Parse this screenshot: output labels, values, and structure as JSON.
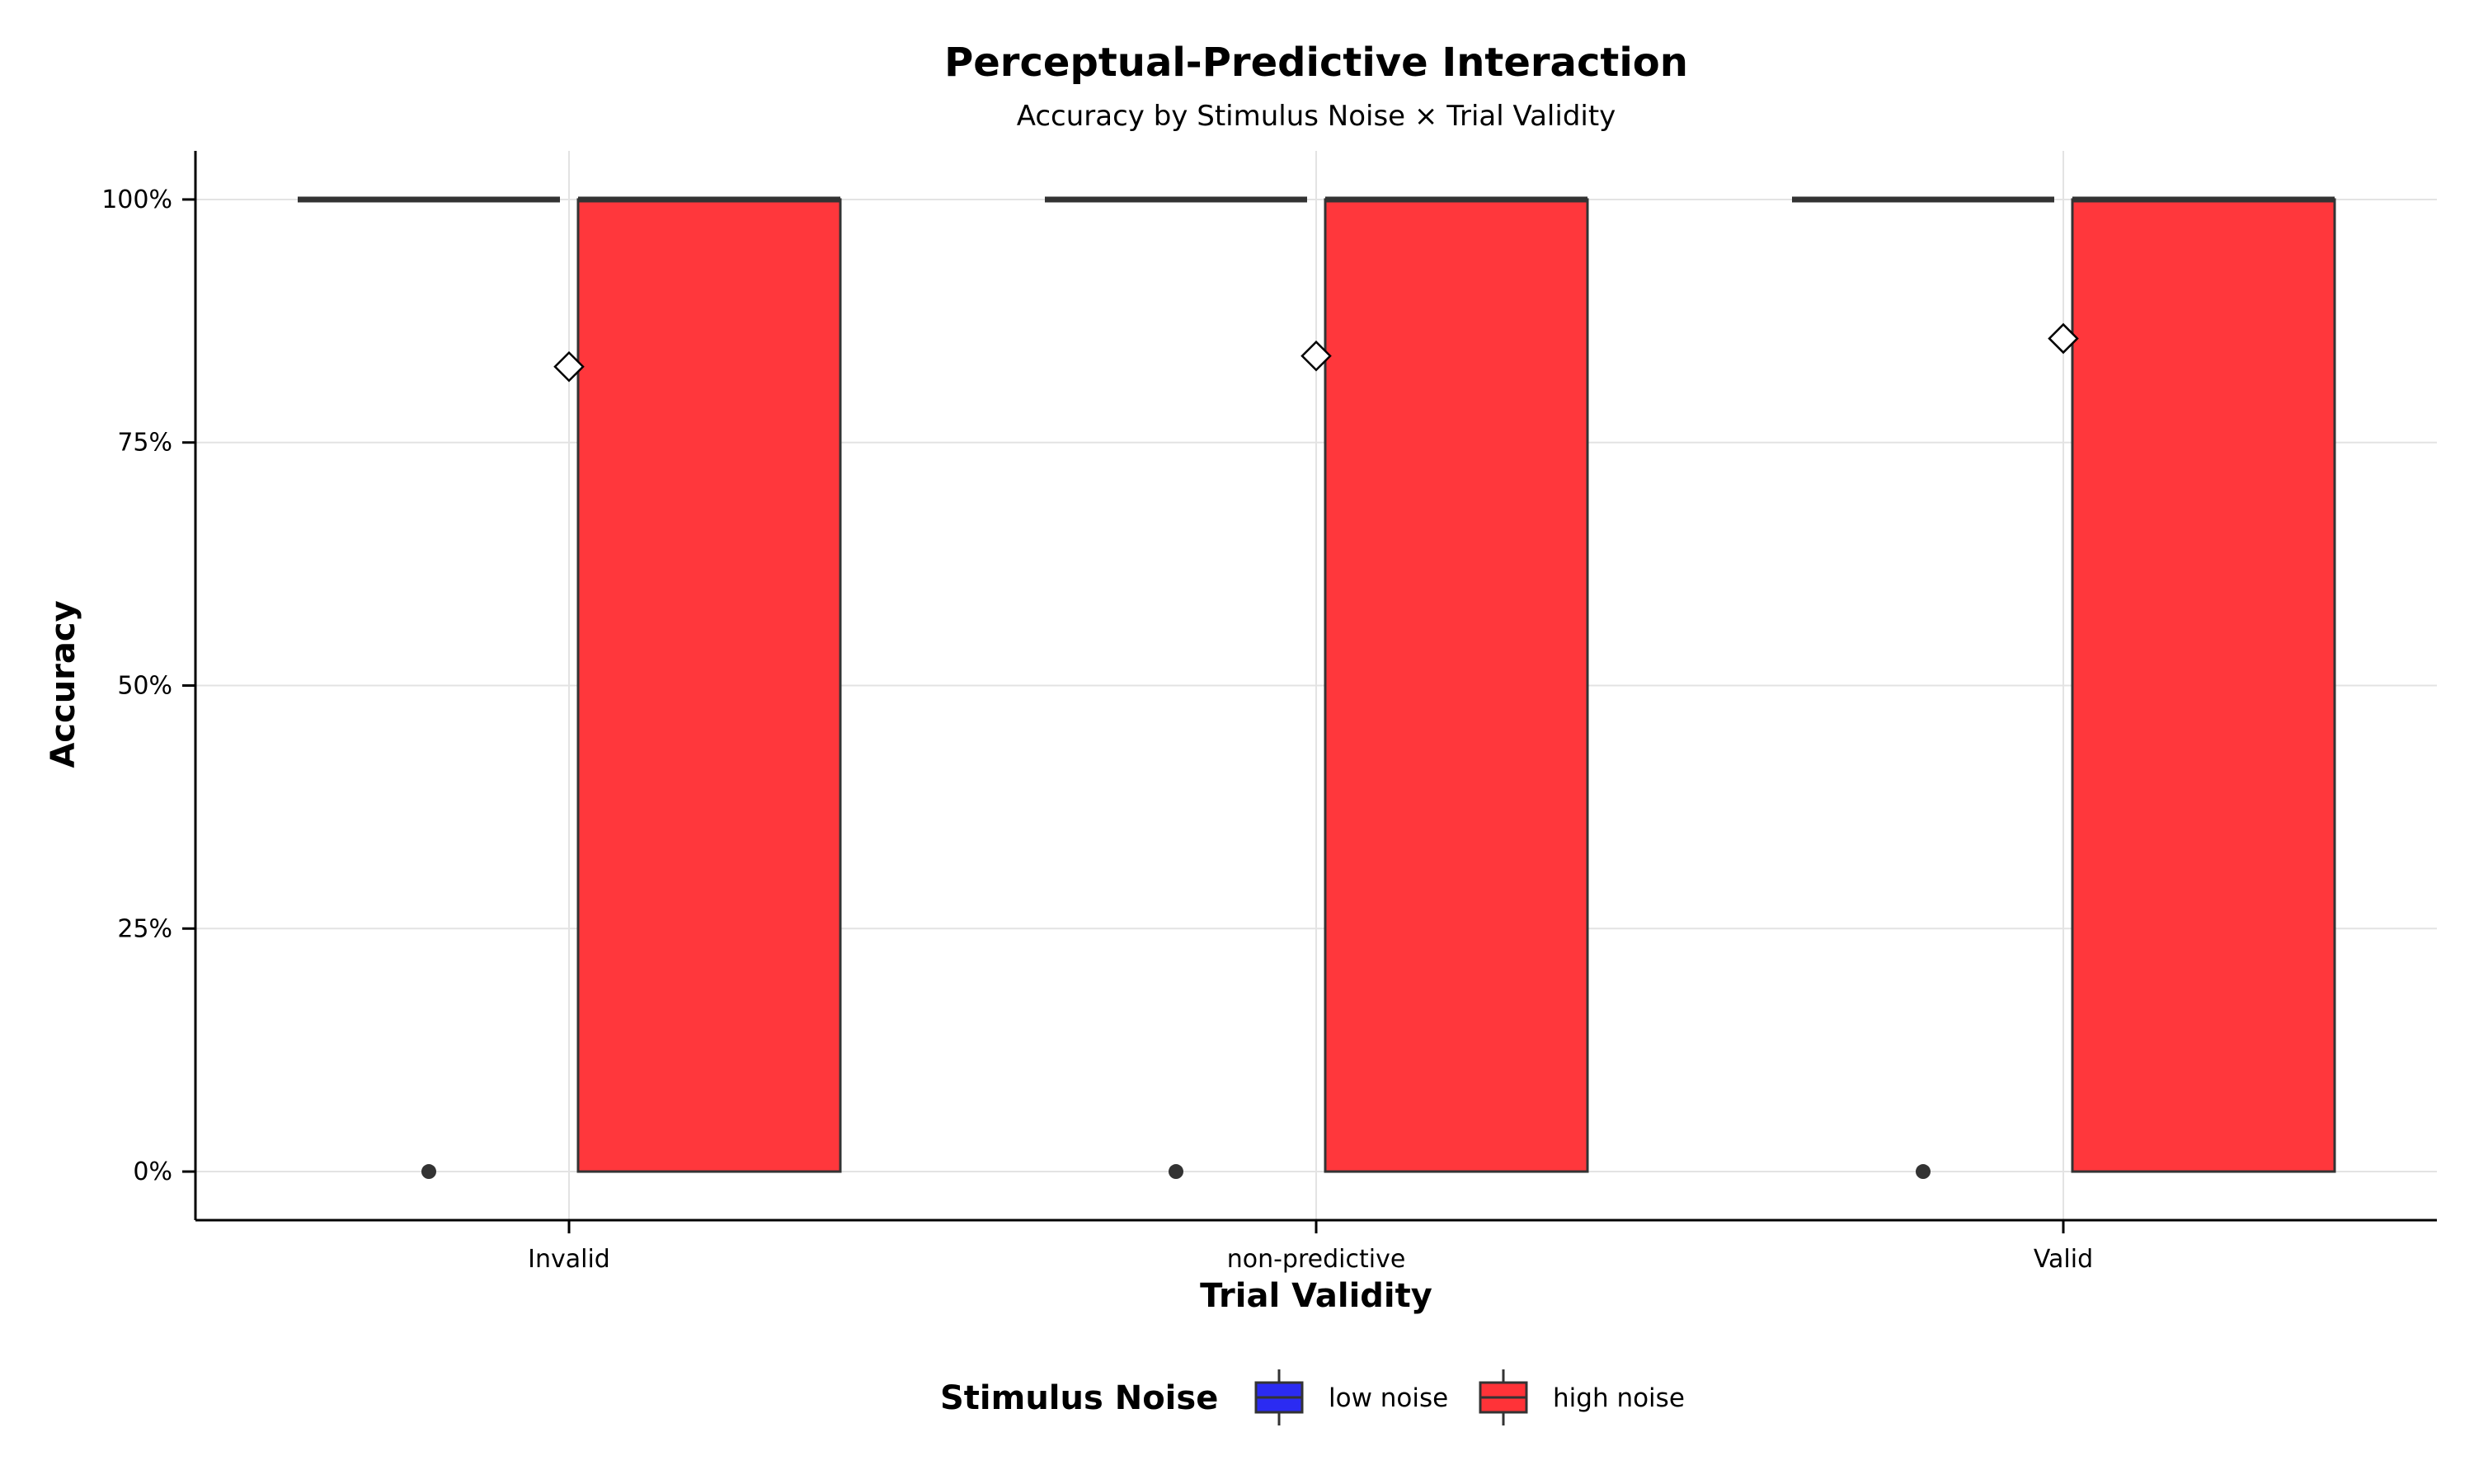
{
  "chart_data": {
    "type": "box",
    "title": "Perceptual-Predictive Interaction",
    "subtitle": "Accuracy by Stimulus Noise × Trial Validity",
    "xlabel": "Trial Validity",
    "ylabel": "Accuracy",
    "categories": [
      "Invalid",
      "non-predictive",
      "Valid"
    ],
    "ylim": [
      -0.05,
      1.05
    ],
    "yticks": [
      0,
      0.25,
      0.5,
      0.75,
      1.0
    ],
    "ytick_labels": [
      "0%",
      "25%",
      "50%",
      "75%",
      "100%"
    ],
    "grid": true,
    "legend": {
      "title": "Stimulus Noise",
      "placement": "bottom",
      "entries": [
        {
          "name": "low noise",
          "color": "#2b2bf2"
        },
        {
          "name": "high noise",
          "color": "#ff3338"
        }
      ]
    },
    "series": [
      {
        "name": "low noise",
        "color": "#2b2bf2",
        "boxes": [
          {
            "q1": 1,
            "median": 1,
            "q3": 1,
            "whisker_low": 1,
            "whisker_high": 1,
            "outliers": [
              0
            ]
          },
          {
            "q1": 1,
            "median": 1,
            "q3": 1,
            "whisker_low": 1,
            "whisker_high": 1,
            "outliers": [
              0
            ]
          },
          {
            "q1": 1,
            "median": 1,
            "q3": 1,
            "whisker_low": 1,
            "whisker_high": 1,
            "outliers": [
              0
            ]
          }
        ]
      },
      {
        "name": "high noise",
        "color": "#ff3338",
        "boxes": [
          {
            "q1": 0,
            "median": 1,
            "q3": 1,
            "whisker_low": 0,
            "whisker_high": 1,
            "outliers": []
          },
          {
            "q1": 0,
            "median": 1,
            "q3": 1,
            "whisker_low": 0,
            "whisker_high": 1,
            "outliers": []
          },
          {
            "q1": 0,
            "median": 1,
            "q3": 1,
            "whisker_low": 0,
            "whisker_high": 1,
            "outliers": []
          }
        ]
      }
    ],
    "means": [
      0.828,
      0.839,
      0.857
    ]
  }
}
